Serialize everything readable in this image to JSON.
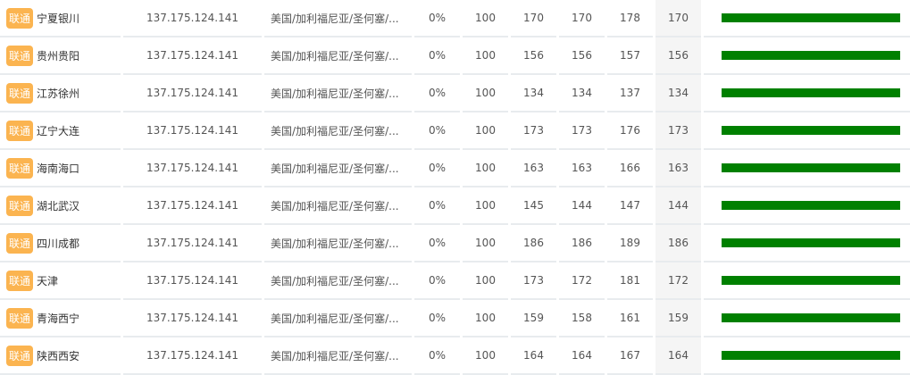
{
  "colors": {
    "badge": "#fbb450",
    "bar": "#008000"
  },
  "rows": [
    {
      "isp": "联通",
      "city": "宁夏银川",
      "ip": "137.175.124.141",
      "location": "美国/加利福尼亚/圣何塞/...",
      "loss": "0%",
      "sent": "100",
      "last": "170",
      "best": "170",
      "worst": "178",
      "avg": "170",
      "bar_fill": 1
    },
    {
      "isp": "联通",
      "city": "贵州贵阳",
      "ip": "137.175.124.141",
      "location": "美国/加利福尼亚/圣何塞/...",
      "loss": "0%",
      "sent": "100",
      "last": "156",
      "best": "156",
      "worst": "157",
      "avg": "156",
      "bar_fill": 1
    },
    {
      "isp": "联通",
      "city": "江苏徐州",
      "ip": "137.175.124.141",
      "location": "美国/加利福尼亚/圣何塞/...",
      "loss": "0%",
      "sent": "100",
      "last": "134",
      "best": "134",
      "worst": "137",
      "avg": "134",
      "bar_fill": 1
    },
    {
      "isp": "联通",
      "city": "辽宁大连",
      "ip": "137.175.124.141",
      "location": "美国/加利福尼亚/圣何塞/...",
      "loss": "0%",
      "sent": "100",
      "last": "173",
      "best": "173",
      "worst": "176",
      "avg": "173",
      "bar_fill": 1
    },
    {
      "isp": "联通",
      "city": "海南海口",
      "ip": "137.175.124.141",
      "location": "美国/加利福尼亚/圣何塞/...",
      "loss": "0%",
      "sent": "100",
      "last": "163",
      "best": "163",
      "worst": "166",
      "avg": "163",
      "bar_fill": 1
    },
    {
      "isp": "联通",
      "city": "湖北武汉",
      "ip": "137.175.124.141",
      "location": "美国/加利福尼亚/圣何塞/...",
      "loss": "0%",
      "sent": "100",
      "last": "145",
      "best": "144",
      "worst": "147",
      "avg": "144",
      "bar_fill": 1
    },
    {
      "isp": "联通",
      "city": "四川成都",
      "ip": "137.175.124.141",
      "location": "美国/加利福尼亚/圣何塞/...",
      "loss": "0%",
      "sent": "100",
      "last": "186",
      "best": "186",
      "worst": "189",
      "avg": "186",
      "bar_fill": 1
    },
    {
      "isp": "联通",
      "city": "天津",
      "ip": "137.175.124.141",
      "location": "美国/加利福尼亚/圣何塞/...",
      "loss": "0%",
      "sent": "100",
      "last": "173",
      "best": "172",
      "worst": "181",
      "avg": "172",
      "bar_fill": 1
    },
    {
      "isp": "联通",
      "city": "青海西宁",
      "ip": "137.175.124.141",
      "location": "美国/加利福尼亚/圣何塞/...",
      "loss": "0%",
      "sent": "100",
      "last": "159",
      "best": "158",
      "worst": "161",
      "avg": "159",
      "bar_fill": 1
    },
    {
      "isp": "联通",
      "city": "陕西西安",
      "ip": "137.175.124.141",
      "location": "美国/加利福尼亚/圣何塞/...",
      "loss": "0%",
      "sent": "100",
      "last": "164",
      "best": "164",
      "worst": "167",
      "avg": "164",
      "bar_fill": 1
    }
  ]
}
